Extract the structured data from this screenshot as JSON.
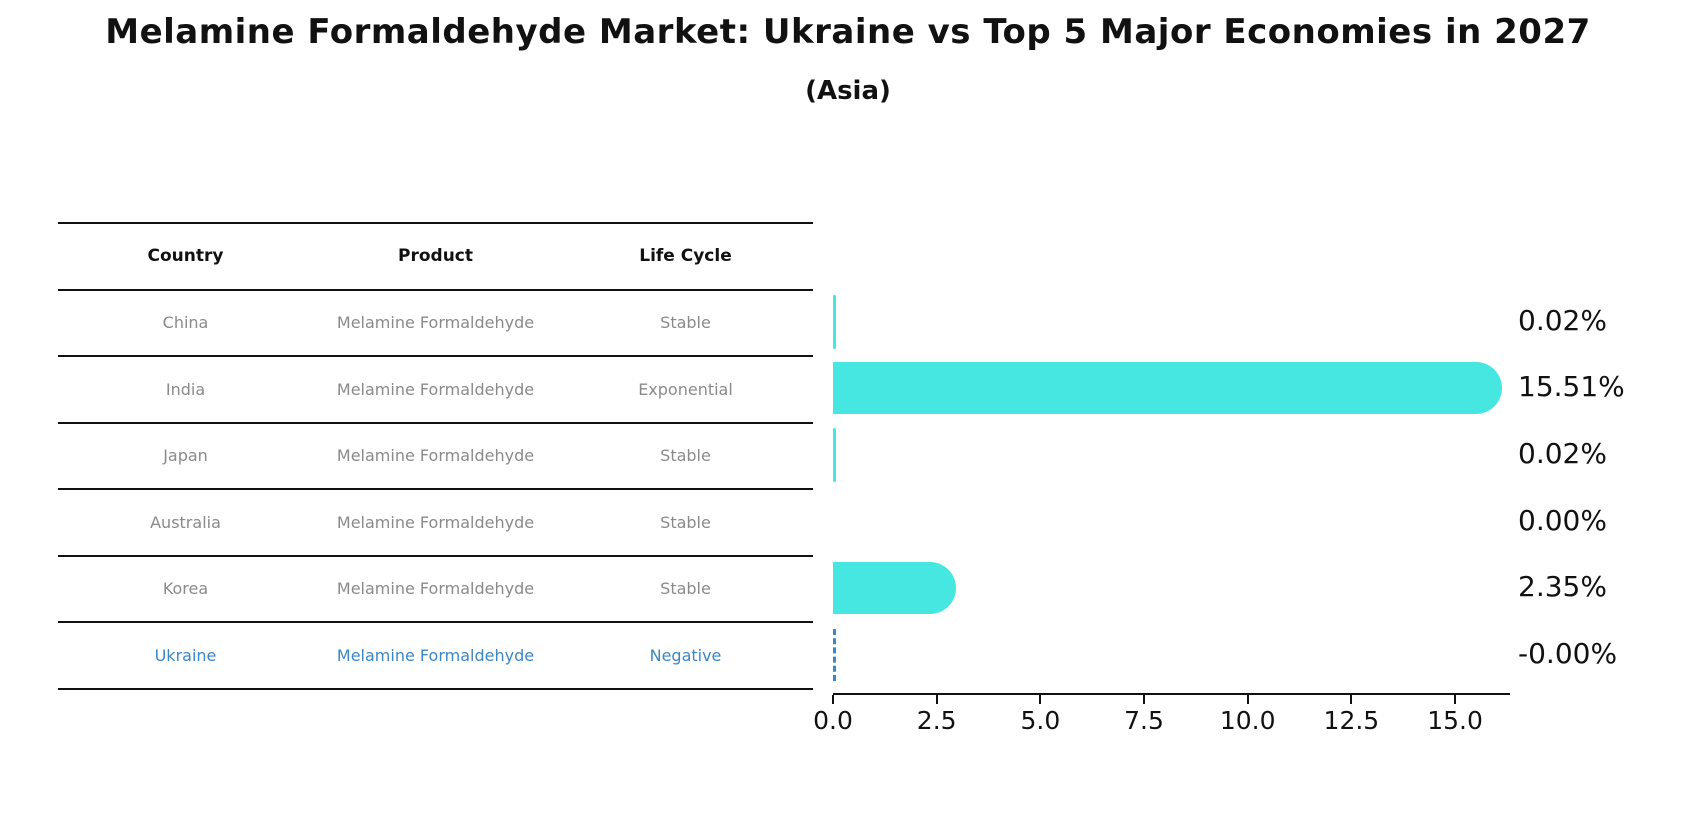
{
  "title": "Melamine Formaldehyde Market: Ukraine vs Top 5 Major Economies in 2027",
  "subtitle": "(Asia)",
  "colors": {
    "bar": "#45e7e0",
    "highlight_blue": "#3a87c8",
    "table_text": "#8a8a8a",
    "header_text": "#111111",
    "axis": "#111111",
    "background": "#ffffff"
  },
  "table": {
    "headers": [
      "Country",
      "Product",
      "Life Cycle"
    ],
    "rows": [
      {
        "country": "China",
        "product": "Melamine Formaldehyde",
        "life_cycle": "Stable",
        "highlight": false
      },
      {
        "country": "India",
        "product": "Melamine Formaldehyde",
        "life_cycle": "Exponential",
        "highlight": false
      },
      {
        "country": "Japan",
        "product": "Melamine Formaldehyde",
        "life_cycle": "Stable",
        "highlight": false
      },
      {
        "country": "Australia",
        "product": "Melamine Formaldehyde",
        "life_cycle": "Stable",
        "highlight": false
      },
      {
        "country": "Korea",
        "product": "Melamine Formaldehyde",
        "life_cycle": "Stable",
        "highlight": false
      },
      {
        "country": "Ukraine",
        "product": "Melamine Formaldehyde",
        "life_cycle": "Negative",
        "highlight": true
      }
    ]
  },
  "chart_data": {
    "type": "bar",
    "orientation": "horizontal",
    "title": "Melamine Formaldehyde Market: Ukraine vs Top 5 Major Economies in 2027",
    "subtitle": "(Asia)",
    "categories": [
      "China",
      "India",
      "Japan",
      "Australia",
      "Korea",
      "Ukraine"
    ],
    "values": [
      0.02,
      15.51,
      0.02,
      0.0,
      2.35,
      -0.0
    ],
    "value_labels": [
      "0.02%",
      "15.51%",
      "0.02%",
      "0.00%",
      "2.35%",
      "-0.00%"
    ],
    "xlabel": "",
    "ylabel": "",
    "xlim": [
      0,
      16.3
    ],
    "xticks": [
      0.0,
      2.5,
      5.0,
      7.5,
      10.0,
      12.5,
      15.0
    ],
    "xtick_labels": [
      "0.0",
      "2.5",
      "5.0",
      "7.5",
      "10.0",
      "12.5",
      "15.0"
    ],
    "grid": false,
    "legend": false,
    "highlight_category": "Ukraine",
    "highlight_marker": "dashed-zero-line"
  }
}
